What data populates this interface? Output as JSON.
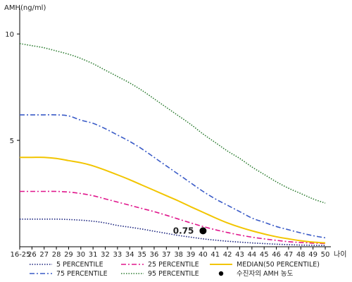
{
  "chart_data": {
    "type": "line",
    "ylabel": "AMH(ng/ml)",
    "xlabel": "나이",
    "x": [
      "16-25",
      "26",
      "27",
      "28",
      "29",
      "30",
      "31",
      "32",
      "33",
      "34",
      "35",
      "36",
      "37",
      "38",
      "39",
      "40",
      "41",
      "42",
      "43",
      "44",
      "45",
      "46",
      "47",
      "48",
      "49",
      "50"
    ],
    "yticks": [
      5,
      10
    ],
    "ylim": [
      0,
      11
    ],
    "grid": false,
    "series": [
      {
        "name": "5 PERCENTILE",
        "color": "#1a237e",
        "dash": "dotted",
        "values": [
          1.3,
          1.3,
          1.3,
          1.3,
          1.28,
          1.25,
          1.2,
          1.12,
          1.0,
          0.92,
          0.83,
          0.73,
          0.63,
          0.53,
          0.45,
          0.37,
          0.31,
          0.26,
          0.22,
          0.18,
          0.15,
          0.12,
          0.1,
          0.08,
          0.07,
          0.06
        ]
      },
      {
        "name": "75 PERCENTILE",
        "color": "#3a5bc7",
        "dash": "dashdot",
        "values": [
          6.2,
          6.2,
          6.2,
          6.2,
          6.15,
          5.95,
          5.8,
          5.55,
          5.25,
          4.95,
          4.6,
          4.2,
          3.8,
          3.4,
          3.0,
          2.6,
          2.25,
          1.95,
          1.65,
          1.35,
          1.15,
          0.95,
          0.8,
          0.65,
          0.52,
          0.42
        ]
      },
      {
        "name": "25 PERCENTILE",
        "color": "#e0168c",
        "dash": "dashdot",
        "values": [
          2.6,
          2.6,
          2.6,
          2.6,
          2.57,
          2.5,
          2.4,
          2.25,
          2.1,
          1.95,
          1.8,
          1.65,
          1.48,
          1.3,
          1.12,
          0.95,
          0.8,
          0.67,
          0.55,
          0.45,
          0.37,
          0.3,
          0.24,
          0.2,
          0.17,
          0.15
        ]
      },
      {
        "name": "95 PERCENTILE",
        "color": "#2e7d32",
        "dash": "dotted",
        "values": [
          9.55,
          9.45,
          9.35,
          9.2,
          9.05,
          8.85,
          8.6,
          8.3,
          8.0,
          7.7,
          7.35,
          6.95,
          6.55,
          6.15,
          5.75,
          5.3,
          4.9,
          4.5,
          4.15,
          3.75,
          3.4,
          3.05,
          2.75,
          2.5,
          2.25,
          2.05
        ]
      },
      {
        "name": "MEDIAN(50 PERCENTILE)",
        "color": "#f2c500",
        "dash": "solid",
        "values": [
          4.2,
          4.2,
          4.2,
          4.15,
          4.05,
          3.95,
          3.8,
          3.6,
          3.38,
          3.15,
          2.9,
          2.65,
          2.4,
          2.15,
          1.88,
          1.62,
          1.36,
          1.12,
          0.92,
          0.75,
          0.6,
          0.47,
          0.37,
          0.28,
          0.22,
          0.18
        ]
      }
    ],
    "point": {
      "name": "수진자의 AMH 농도",
      "x": "40",
      "y": 0.75,
      "label": "0.75",
      "color": "#000000"
    },
    "legend": [
      {
        "label": "5 PERCENTILE",
        "color": "#1a237e",
        "dash": "dotted"
      },
      {
        "label": "25 PERCENTILE",
        "color": "#e0168c",
        "dash": "dashdot"
      },
      {
        "label": "MEDIAN(50 PERCENTILE)",
        "color": "#f2c500",
        "dash": "solid"
      },
      {
        "label": "75 PERCENTILE",
        "color": "#3a5bc7",
        "dash": "dashdot"
      },
      {
        "label": "95 PERCENTILE",
        "color": "#2e7d32",
        "dash": "dotted"
      },
      {
        "label": "수진자의 AMH 농도",
        "color": "#000000",
        "dash": "marker"
      }
    ]
  }
}
